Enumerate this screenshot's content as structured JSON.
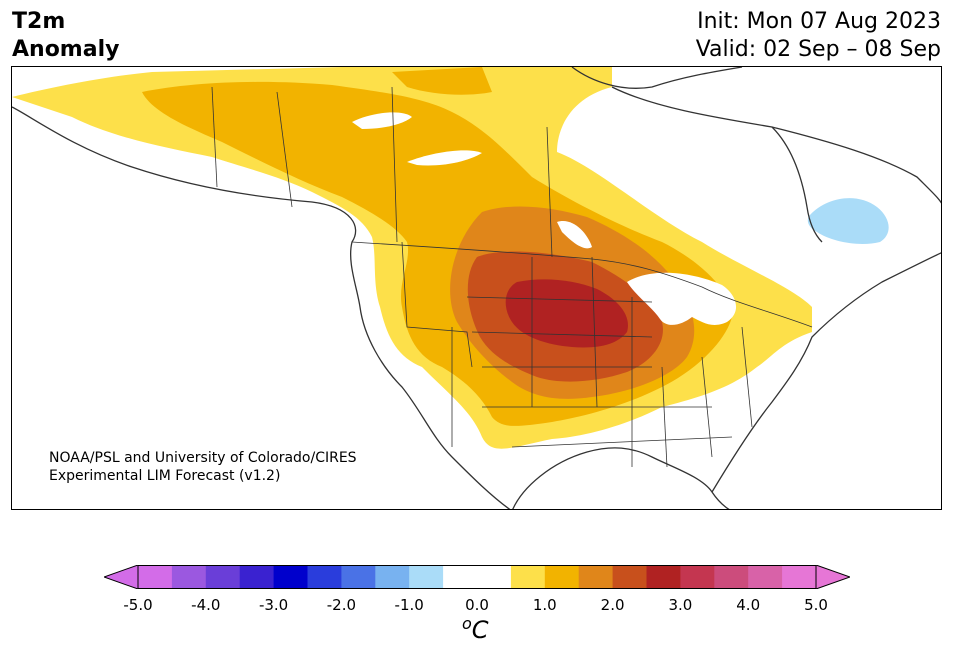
{
  "title": {
    "left_line1": "T2m",
    "left_line2": "Anomaly",
    "init": "Init: Mon 07 Aug 2023",
    "valid": "Valid: 02 Sep – 08 Sep"
  },
  "credit": {
    "line1": "NOAA/PSL and University of Colorado/CIRES",
    "line2": "Experimental LIM Forecast (v1.2)"
  },
  "colorbar": {
    "unit_base": "C",
    "unit_sup": "o",
    "ticks": [
      "-5.0",
      "-4.0",
      "-3.0",
      "-2.0",
      "-1.0",
      "0.0",
      "1.0",
      "2.0",
      "3.0",
      "4.0",
      "5.0"
    ],
    "colors": [
      "#d36ce8",
      "#9b58e0",
      "#6a3ed8",
      "#3a22d0",
      "#0000cc",
      "#2a3ddc",
      "#4a72e6",
      "#78b2f0",
      "#aadcf8",
      "#ffffff",
      "#ffffff",
      "#fde04a",
      "#f2b300",
      "#e0861a",
      "#c8501c",
      "#b02222",
      "#c43650",
      "#cc4c7c",
      "#d862a8",
      "#e676d6"
    ],
    "extend_low_color": "#d36ce8",
    "extend_high_color": "#e676d6"
  },
  "map_colors": {
    "anom_0_5_to_1_0": "#fde04a",
    "anom_1_0_to_1_5": "#f2b300",
    "anom_1_5_to_2_0": "#e0861a",
    "anom_2_0_to_2_5": "#c8501c",
    "anom_2_5_to_3_0": "#b02222",
    "anom_neg_1_0_to_neg_0_5": "#aadcf8",
    "coastline": "#333333",
    "lakes": "#ffffff"
  }
}
